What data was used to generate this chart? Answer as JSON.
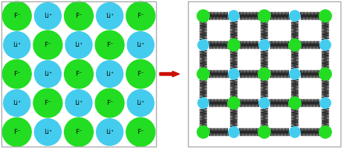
{
  "fig_width": 4.82,
  "fig_height": 2.09,
  "dpi": 100,
  "bg_color": "#ffffff",
  "left_panel": {
    "F_color": "#22dd22",
    "Li_color": "#44ccee",
    "F_label": "F⁻",
    "Li_label": "Li⁺",
    "border_color": "#aaaaaa"
  },
  "arrow": {
    "color": "#cc1100"
  },
  "right_panel": {
    "F_color": "#22dd22",
    "Li_color": "#44ccee",
    "spring_color": "#111111",
    "border_color": "#aaaaaa"
  }
}
